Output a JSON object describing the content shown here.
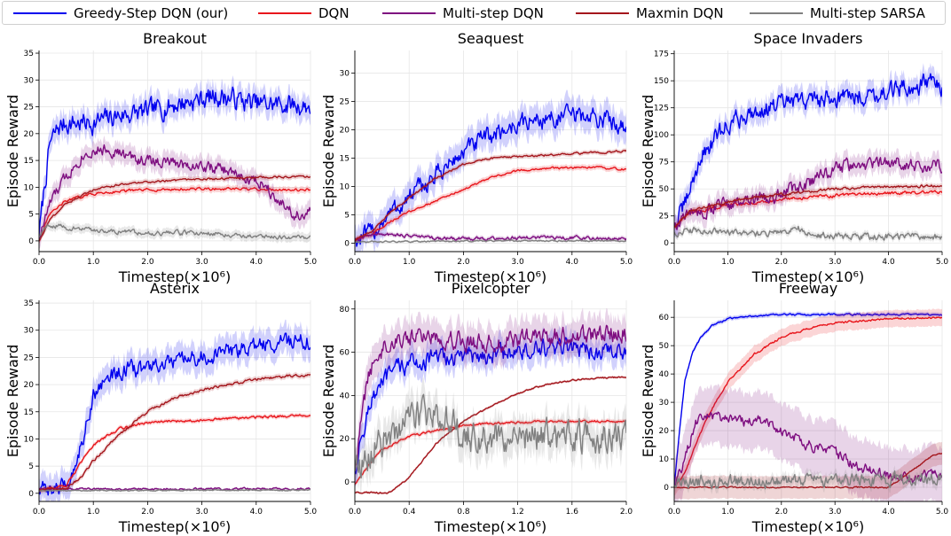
{
  "legend": [
    {
      "label": "Greedy-Step DQN (our)",
      "color": "#0000ee"
    },
    {
      "label": "DQN",
      "color": "#e8161c"
    },
    {
      "label": "Multi-step DQN",
      "color": "#7e0e80"
    },
    {
      "label": "Maxmin DQN",
      "color": "#a4161c"
    },
    {
      "label": "Multi-step SARSA",
      "color": "#808080"
    }
  ],
  "chart_data": [
    {
      "type": "line",
      "title": "Breakout",
      "xlabel": "Timestep(×10⁶)",
      "ylabel": "Episode Reward",
      "xlim": [
        0,
        5
      ],
      "ylim": [
        -2,
        35.5
      ],
      "xticks": [
        0,
        1,
        2,
        3,
        4,
        5
      ],
      "xtick_labels": [
        "0.0",
        "1.0",
        "2.0",
        "3.0",
        "4.0",
        "5.0"
      ],
      "yticks": [
        0,
        5,
        10,
        15,
        20,
        25,
        30,
        35
      ],
      "grid": true,
      "series": [
        {
          "name": "Greedy-Step DQN (our)",
          "color": "#0000ee",
          "noise": 1.6,
          "band": 2.2,
          "x": [
            0,
            0.1,
            0.2,
            0.35,
            0.5,
            1.0,
            1.5,
            2.0,
            2.5,
            3.0,
            3.3,
            3.6,
            4.0,
            4.5,
            5.0
          ],
          "y": [
            1,
            10,
            18,
            21,
            22,
            22,
            23.5,
            24,
            25.5,
            26.5,
            27,
            26.5,
            25.5,
            25.5,
            25
          ]
        },
        {
          "name": "DQN",
          "color": "#e8161c",
          "noise": 0.2,
          "band": 0.6,
          "x": [
            0,
            0.2,
            0.5,
            1.0,
            1.5,
            2.0,
            3.0,
            4.0,
            5.0
          ],
          "y": [
            0,
            5,
            7.5,
            8.8,
            9.3,
            9.5,
            9.7,
            9.6,
            9.5
          ]
        },
        {
          "name": "Multi-step DQN",
          "color": "#7e0e80",
          "noise": 0.9,
          "band": 1.8,
          "x": [
            0,
            0.2,
            0.5,
            0.8,
            1.0,
            1.3,
            1.7,
            2.0,
            2.5,
            3.0,
            3.5,
            3.8,
            4.1,
            4.4,
            4.7,
            5.0
          ],
          "y": [
            0.5,
            7,
            12,
            16,
            17,
            17,
            15.5,
            15,
            14.5,
            14,
            13,
            11.5,
            11,
            8,
            5,
            5
          ]
        },
        {
          "name": "Maxmin DQN",
          "color": "#a4161c",
          "noise": 0.15,
          "band": 0.5,
          "x": [
            0,
            0.2,
            0.5,
            1.0,
            1.5,
            2.0,
            3.0,
            4.0,
            5.0
          ],
          "y": [
            0,
            4,
            7,
            9.5,
            10.5,
            11,
            11.5,
            11.8,
            12
          ]
        },
        {
          "name": "Multi-step SARSA",
          "color": "#808080",
          "noise": 0.35,
          "band": 0.8,
          "x": [
            0,
            0.2,
            0.5,
            1.0,
            2.0,
            3.0,
            3.5,
            4.0,
            5.0
          ],
          "y": [
            1,
            3,
            2.5,
            2,
            1.5,
            1.5,
            1.2,
            0.8,
            0.7
          ]
        }
      ]
    },
    {
      "type": "line",
      "title": "Seaquest",
      "xlabel": "Timestep(×10⁶)",
      "ylabel": "Episode Reward",
      "xlim": [
        0,
        5
      ],
      "ylim": [
        -1.5,
        34
      ],
      "xticks": [
        0,
        1,
        2,
        3,
        4,
        5
      ],
      "xtick_labels": [
        "0.0",
        "1.0",
        "2.0",
        "3.0",
        "4.0",
        "5.0"
      ],
      "yticks": [
        0,
        5,
        10,
        15,
        20,
        25,
        30
      ],
      "grid": true,
      "series": [
        {
          "name": "Greedy-Step DQN (our)",
          "color": "#0000ee",
          "noise": 1.4,
          "band": 2.5,
          "x": [
            0,
            0.3,
            0.5,
            1.0,
            1.5,
            2.0,
            2.5,
            3.0,
            3.5,
            4.0,
            4.5,
            5.0
          ],
          "y": [
            0.5,
            1.5,
            4,
            8,
            12,
            16,
            19,
            21,
            22,
            22.5,
            22,
            21
          ]
        },
        {
          "name": "DQN",
          "color": "#e8161c",
          "noise": 0.15,
          "band": 0.5,
          "x": [
            0,
            0.3,
            0.6,
            1.0,
            1.5,
            2.0,
            2.5,
            3.0,
            3.5,
            4.0,
            4.5,
            5.0
          ],
          "y": [
            0.5,
            1.5,
            3.5,
            5.5,
            7.5,
            9.5,
            11.5,
            12.8,
            13.2,
            13.3,
            13.3,
            13
          ]
        },
        {
          "name": "Multi-step DQN",
          "color": "#7e0e80",
          "noise": 0.25,
          "band": 0.4,
          "x": [
            0,
            0.3,
            0.8,
            1.5,
            2.5,
            3.5,
            5.0
          ],
          "y": [
            0.5,
            1.5,
            1.5,
            0.8,
            0.8,
            1,
            0.8
          ]
        },
        {
          "name": "Maxmin DQN",
          "color": "#a4161c",
          "noise": 0.15,
          "band": 0.4,
          "x": [
            0,
            0.3,
            0.6,
            1.0,
            1.5,
            2.0,
            2.5,
            3.0,
            4.0,
            5.0
          ],
          "y": [
            0.5,
            2,
            5,
            8,
            11.5,
            14,
            15,
            15.3,
            15.8,
            16.2
          ]
        },
        {
          "name": "Multi-step SARSA",
          "color": "#808080",
          "noise": 0.1,
          "band": 0.2,
          "x": [
            0,
            1.0,
            3.0,
            5.0
          ],
          "y": [
            0.2,
            0.3,
            0.4,
            0.4
          ]
        }
      ]
    },
    {
      "type": "line",
      "title": "Space Invaders",
      "xlabel": "Timestep(×10⁶)",
      "ylabel": "Episode Reward",
      "xlim": [
        0,
        5
      ],
      "ylim": [
        -8,
        178
      ],
      "xticks": [
        0,
        1,
        2,
        3,
        4,
        5
      ],
      "xtick_labels": [
        "0.0",
        "1.0",
        "2.0",
        "3.0",
        "4.0",
        "5.0"
      ],
      "yticks": [
        0,
        25,
        50,
        75,
        100,
        125,
        150,
        175
      ],
      "grid": true,
      "series": [
        {
          "name": "Greedy-Step DQN (our)",
          "color": "#0000ee",
          "noise": 7,
          "band": 10,
          "x": [
            0,
            0.2,
            0.5,
            1.0,
            1.5,
            2.0,
            2.5,
            3.0,
            3.5,
            4.0,
            4.5,
            4.8,
            5.0
          ],
          "y": [
            15,
            35,
            80,
            110,
            122,
            128,
            132,
            135,
            137,
            140,
            145,
            150,
            140
          ]
        },
        {
          "name": "DQN",
          "color": "#e8161c",
          "noise": 1.2,
          "band": 3,
          "x": [
            0,
            0.3,
            1.0,
            2.0,
            3.0,
            4.0,
            5.0
          ],
          "y": [
            15,
            28,
            35,
            40,
            44,
            46,
            47
          ]
        },
        {
          "name": "Multi-step DQN",
          "color": "#7e0e80",
          "noise": 5,
          "band": 9,
          "x": [
            0,
            0.3,
            1.0,
            1.5,
            2.0,
            2.5,
            3.0,
            3.5,
            4.0,
            4.5,
            5.0
          ],
          "y": [
            15,
            28,
            35,
            38,
            45,
            55,
            70,
            72,
            75,
            70,
            72
          ]
        },
        {
          "name": "Maxmin DQN",
          "color": "#a4161c",
          "noise": 1,
          "band": 2.5,
          "x": [
            0,
            0.3,
            1.0,
            2.0,
            3.0,
            4.0,
            5.0
          ],
          "y": [
            15,
            30,
            38,
            45,
            50,
            52,
            53
          ]
        },
        {
          "name": "Multi-step SARSA",
          "color": "#808080",
          "noise": 2.5,
          "band": 3,
          "x": [
            0,
            0.5,
            1.0,
            1.5,
            2.0,
            2.3,
            2.6,
            3.0,
            4.0,
            5.0
          ],
          "y": [
            10,
            12,
            10,
            8,
            10,
            14,
            8,
            6,
            6,
            5
          ]
        }
      ]
    },
    {
      "type": "line",
      "title": "Asterix",
      "xlabel": "Timestep(×10⁶)",
      "ylabel": "Episode Reward",
      "xlim": [
        0,
        5
      ],
      "ylim": [
        -1.5,
        35.5
      ],
      "xticks": [
        0,
        1,
        2,
        3,
        4,
        5
      ],
      "xtick_labels": [
        "0.0",
        "1.0",
        "2.0",
        "3.0",
        "4.0",
        "5.0"
      ],
      "yticks": [
        0,
        5,
        10,
        15,
        20,
        25,
        30,
        35
      ],
      "grid": true,
      "series": [
        {
          "name": "Greedy-Step DQN (our)",
          "color": "#0000ee",
          "noise": 1.2,
          "band": 2.5,
          "x": [
            0,
            0.4,
            0.6,
            0.8,
            1.0,
            1.2,
            1.5,
            2.0,
            2.5,
            3.0,
            3.5,
            4.0,
            4.5,
            5.0
          ],
          "y": [
            0.5,
            1,
            3,
            10,
            18,
            21,
            22.5,
            23,
            24,
            25,
            26,
            27,
            28,
            28
          ]
        },
        {
          "name": "DQN",
          "color": "#e8161c",
          "noise": 0.2,
          "band": 0.4,
          "x": [
            0,
            0.5,
            0.8,
            1.0,
            1.5,
            2.0,
            3.0,
            4.0,
            5.0
          ],
          "y": [
            0.5,
            1.5,
            6,
            9,
            12,
            13,
            13.5,
            14,
            14.3
          ]
        },
        {
          "name": "Multi-step DQN",
          "color": "#7e0e80",
          "noise": 0.15,
          "band": 0.2,
          "x": [
            0,
            5.0
          ],
          "y": [
            0.8,
            0.8
          ]
        },
        {
          "name": "Maxmin DQN",
          "color": "#a4161c",
          "noise": 0.2,
          "band": 0.5,
          "x": [
            0,
            0.5,
            0.8,
            1.0,
            1.5,
            2.0,
            2.5,
            3.0,
            3.5,
            4.0,
            4.5,
            5.0
          ],
          "y": [
            0.5,
            1,
            3,
            6,
            11,
            15,
            17.5,
            19,
            20,
            21,
            21.5,
            21.8
          ]
        },
        {
          "name": "Multi-step SARSA",
          "color": "#808080",
          "noise": 0.08,
          "band": 0.2,
          "x": [
            0,
            5.0
          ],
          "y": [
            0.5,
            0.6
          ]
        }
      ]
    },
    {
      "type": "line",
      "title": "Pixelcopter",
      "xlabel": "Timestep(×10⁶)",
      "ylabel": "Episode Reward",
      "xlim": [
        0,
        2
      ],
      "ylim": [
        -9,
        84
      ],
      "xticks": [
        0,
        0.4,
        0.8,
        1.2,
        1.6,
        2.0
      ],
      "xtick_labels": [
        "0.0",
        "0.4",
        "0.8",
        "1.2",
        "1.6",
        "2.0"
      ],
      "yticks": [
        0,
        20,
        40,
        60,
        80
      ],
      "grid": true,
      "series": [
        {
          "name": "Greedy-Step DQN (our)",
          "color": "#0000ee",
          "noise": 3.5,
          "band": 6,
          "x": [
            0,
            0.05,
            0.1,
            0.2,
            0.3,
            0.4,
            0.6,
            0.8,
            1.0,
            1.2,
            1.4,
            1.6,
            1.8,
            2.0
          ],
          "y": [
            5,
            20,
            35,
            45,
            52,
            55,
            57,
            58,
            59,
            60,
            61,
            62,
            60,
            60
          ]
        },
        {
          "name": "DQN",
          "color": "#e8161c",
          "noise": 0.4,
          "band": 1,
          "x": [
            0,
            0.1,
            0.2,
            0.4,
            0.6,
            0.8,
            1.0,
            1.4,
            2.0
          ],
          "y": [
            -1,
            8,
            15,
            21,
            24,
            26,
            27,
            28,
            28
          ]
        },
        {
          "name": "Multi-step DQN",
          "color": "#7e0e80",
          "noise": 3.5,
          "band": 8,
          "x": [
            0,
            0.05,
            0.1,
            0.2,
            0.3,
            0.5,
            0.8,
            1.0,
            1.2,
            1.4,
            1.6,
            1.8,
            2.0
          ],
          "y": [
            5,
            30,
            50,
            62,
            66,
            68,
            66,
            64,
            66,
            67,
            68,
            68,
            70
          ]
        },
        {
          "name": "Maxmin DQN",
          "color": "#a4161c",
          "noise": 0.3,
          "band": 0.6,
          "x": [
            0,
            0.25,
            0.4,
            0.5,
            0.6,
            0.8,
            1.0,
            1.2,
            1.4,
            1.6,
            1.8,
            2.0
          ],
          "y": [
            -5,
            -5,
            2,
            10,
            18,
            28,
            35,
            41,
            45,
            47,
            48,
            48.5
          ]
        },
        {
          "name": "Multi-step SARSA",
          "color": "#808080",
          "noise": 6,
          "band": 8,
          "x": [
            0,
            0.1,
            0.2,
            0.4,
            0.6,
            0.8,
            1.0,
            1.2,
            1.4,
            1.6,
            1.8,
            2.0
          ],
          "y": [
            5,
            12,
            20,
            28,
            32,
            22,
            20,
            22,
            20,
            20,
            21,
            22
          ]
        }
      ]
    },
    {
      "type": "line",
      "title": "Freeway",
      "xlabel": "Timestep(×10⁶)",
      "ylabel": "Episode Reward",
      "xlim": [
        0,
        5
      ],
      "ylim": [
        -5,
        66
      ],
      "xticks": [
        0,
        1,
        2,
        3,
        4,
        5
      ],
      "xtick_labels": [
        "0.0",
        "1.0",
        "2.0",
        "3.0",
        "4.0",
        "5.0"
      ],
      "yticks": [
        0,
        10,
        20,
        30,
        40,
        50,
        60
      ],
      "grid": true,
      "series": [
        {
          "name": "Greedy-Step DQN (our)",
          "color": "#0000ee",
          "noise": 0.25,
          "band": 0.8,
          "x": [
            0,
            0.1,
            0.2,
            0.35,
            0.5,
            0.7,
            1.0,
            1.5,
            2.0,
            3.0,
            4.0,
            5.0
          ],
          "y": [
            0,
            20,
            38,
            48,
            53,
            57,
            59.5,
            60.5,
            61,
            61,
            61,
            61
          ]
        },
        {
          "name": "DQN",
          "color": "#e8161c",
          "noise": 0.3,
          "band": 3,
          "x": [
            0,
            0.2,
            0.4,
            0.6,
            0.8,
            1.0,
            1.5,
            2.0,
            2.5,
            3.0,
            4.0,
            5.0
          ],
          "y": [
            0,
            5,
            15,
            24,
            31,
            37,
            47,
            53,
            56,
            58,
            59.5,
            60
          ]
        },
        {
          "name": "Multi-step DQN",
          "color": "#7e0e80",
          "noise": 1.5,
          "band": 10,
          "x": [
            0,
            0.2,
            0.4,
            0.7,
            1.0,
            1.3,
            1.6,
            2.0,
            2.5,
            3.0,
            3.5,
            4.0,
            4.5,
            5.0
          ],
          "y": [
            0,
            10,
            23,
            25,
            24,
            23,
            24,
            20,
            15,
            12,
            7,
            4,
            3,
            5
          ]
        },
        {
          "name": "Maxmin DQN",
          "color": "#a4161c",
          "noise": 0.2,
          "band": 4,
          "x": [
            0,
            4.0,
            4.3,
            4.6,
            4.8,
            5.0
          ],
          "y": [
            0,
            0,
            4,
            8,
            11,
            12
          ]
        },
        {
          "name": "Multi-step SARSA",
          "color": "#808080",
          "noise": 1.8,
          "band": 2,
          "x": [
            0,
            0.2,
            0.5,
            1.0,
            2.0,
            3.0,
            4.0,
            5.0
          ],
          "y": [
            0,
            3,
            2,
            2,
            2,
            2,
            3,
            3
          ]
        }
      ]
    }
  ]
}
